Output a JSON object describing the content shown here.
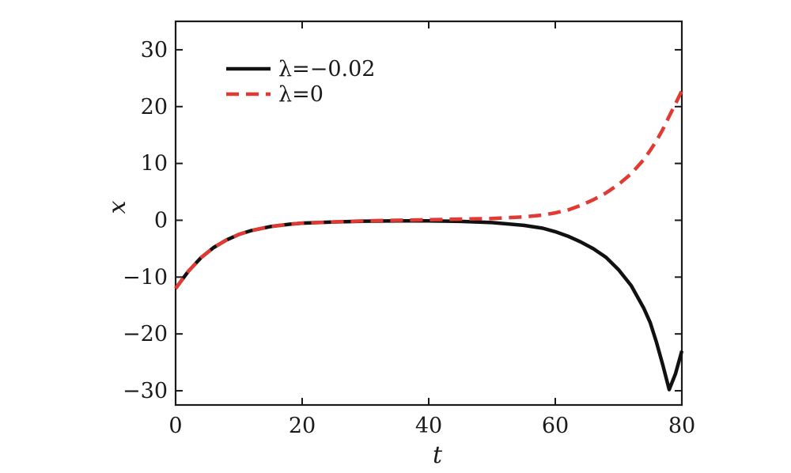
{
  "chart_data": {
    "type": "line",
    "title": "",
    "xlabel": "t",
    "ylabel": "x",
    "xlim": [
      0,
      80
    ],
    "ylim": [
      -32.5,
      35
    ],
    "xticks": [
      0,
      20,
      40,
      60,
      80
    ],
    "yticks": [
      -30,
      -20,
      -10,
      0,
      10,
      20,
      30
    ],
    "xtick_labels": [
      "0",
      "20",
      "40",
      "60",
      "80"
    ],
    "ytick_labels": [
      "−30",
      "−20",
      "−10",
      "0",
      "10",
      "20",
      "30"
    ],
    "grid": false,
    "legend_position": "top-left",
    "series": [
      {
        "name": "λ=−0.02",
        "color": "#111111",
        "dash": "solid",
        "x": [
          0,
          2,
          4,
          6,
          8,
          10,
          12,
          15,
          18,
          20,
          25,
          30,
          35,
          40,
          45,
          50,
          55,
          58,
          60,
          62,
          64,
          66,
          68,
          70,
          72,
          74,
          75,
          76,
          77,
          78,
          79,
          80
        ],
        "y": [
          -12,
          -9,
          -6.6,
          -4.8,
          -3.5,
          -2.5,
          -1.8,
          -1.1,
          -0.7,
          -0.5,
          -0.3,
          -0.15,
          -0.1,
          -0.1,
          -0.2,
          -0.4,
          -0.9,
          -1.4,
          -2,
          -2.8,
          -3.8,
          -5,
          -6.5,
          -8.7,
          -11.5,
          -15.5,
          -18,
          -21.5,
          -25.5,
          -29.8,
          -27,
          -23
        ]
      },
      {
        "name": "λ=0",
        "color": "#e03a33",
        "dash": "dashed",
        "x": [
          0,
          2,
          4,
          6,
          8,
          10,
          12,
          15,
          18,
          20,
          25,
          30,
          35,
          40,
          45,
          50,
          55,
          58,
          60,
          62,
          64,
          66,
          68,
          70,
          72,
          74,
          75,
          76,
          77,
          78,
          79,
          80
        ],
        "y": [
          -12,
          -9,
          -6.6,
          -4.8,
          -3.5,
          -2.5,
          -1.8,
          -1.1,
          -0.7,
          -0.5,
          -0.3,
          -0.1,
          0,
          0.1,
          0.2,
          0.3,
          0.6,
          0.9,
          1.3,
          1.8,
          2.6,
          3.6,
          4.8,
          6.3,
          8.2,
          10.7,
          12.3,
          14,
          16,
          18.3,
          20.5,
          22.8
        ]
      }
    ]
  }
}
